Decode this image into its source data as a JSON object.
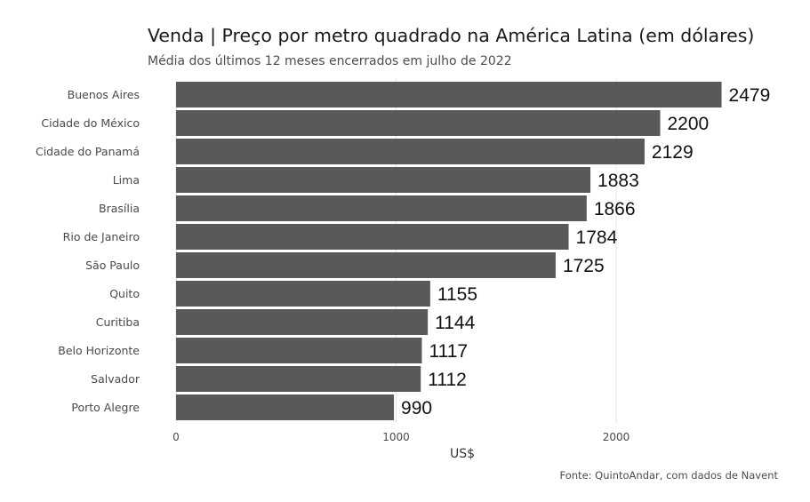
{
  "colors": {
    "bar": "#595959",
    "grid": "#e4e4e4"
  },
  "chart_data": {
    "type": "bar",
    "orientation": "horizontal",
    "title": "Venda | Preço por metro quadrado na América Latina (em dólares)",
    "subtitle": "Média dos últimos 12 meses encerrados em julho de 2022",
    "xlabel": "US$",
    "ylabel": "",
    "caption": "Fonte: QuintoAndar, com dados de Navent",
    "xlim": [
      0,
      2600
    ],
    "xticks": [
      0,
      1000,
      2000
    ],
    "grid": true,
    "categories": [
      "Buenos Aires",
      "Cidade do México",
      "Cidade do Panamá",
      "Lima",
      "Brasília",
      "Rio de Janeiro",
      "São Paulo",
      "Quito",
      "Curitiba",
      "Belo Horizonte",
      "Salvador",
      "Porto Alegre"
    ],
    "values": [
      2479,
      2200,
      2129,
      1883,
      1866,
      1784,
      1725,
      1155,
      1144,
      1117,
      1112,
      990
    ]
  }
}
